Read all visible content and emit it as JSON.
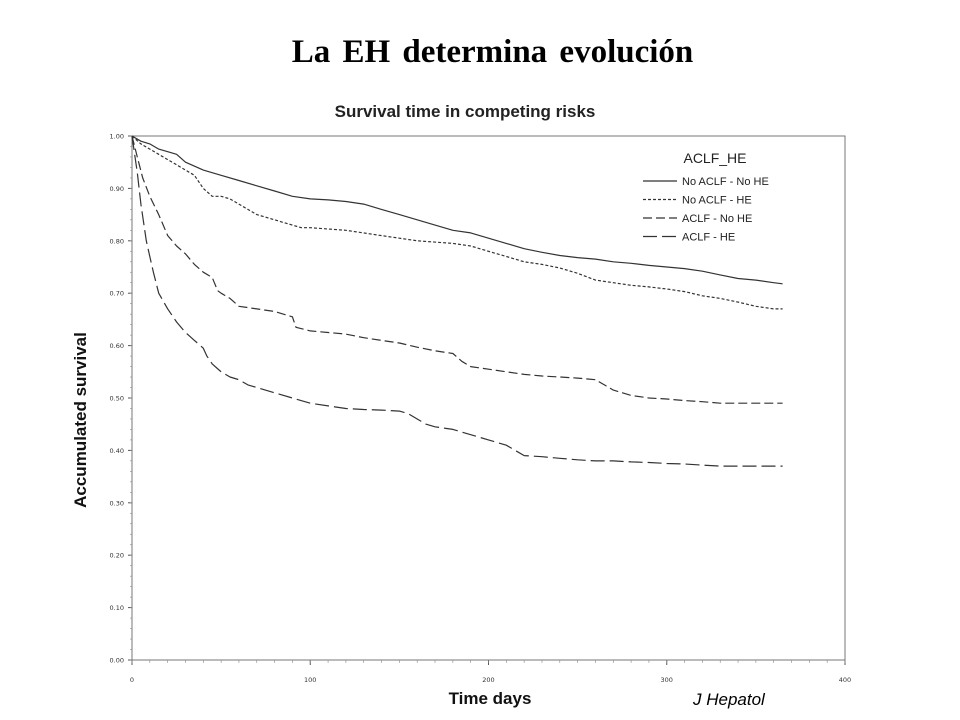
{
  "slide": {
    "title": "La EH determina  evolución",
    "source": "J Hepatol"
  },
  "chart_data": {
    "type": "line",
    "title": "Survival time in competing risks",
    "xlabel": "Time days",
    "ylabel": "Accumulated survival",
    "xlim": [
      0,
      400
    ],
    "ylim": [
      0,
      1
    ],
    "x_ticks": [
      "0",
      "100",
      "200",
      "300",
      "400"
    ],
    "y_ticks": [
      "0.00",
      "0.10",
      "0.20",
      "0.30",
      "0.40",
      "0.50",
      "0.60",
      "0.70",
      "0.80",
      "0.90",
      "1.00"
    ],
    "grid": false,
    "legend": {
      "title": "ACLF_HE",
      "position": "top-right"
    },
    "line_color": "#333333",
    "series": [
      {
        "name": "No ACLF - No HE",
        "dash": "solid",
        "points": [
          [
            0,
            1.0
          ],
          [
            5,
            0.99
          ],
          [
            10,
            0.985
          ],
          [
            15,
            0.975
          ],
          [
            20,
            0.97
          ],
          [
            25,
            0.965
          ],
          [
            30,
            0.95
          ],
          [
            40,
            0.935
          ],
          [
            50,
            0.925
          ],
          [
            60,
            0.915
          ],
          [
            70,
            0.905
          ],
          [
            80,
            0.895
          ],
          [
            90,
            0.885
          ],
          [
            100,
            0.88
          ],
          [
            110,
            0.878
          ],
          [
            120,
            0.875
          ],
          [
            130,
            0.87
          ],
          [
            140,
            0.86
          ],
          [
            150,
            0.85
          ],
          [
            160,
            0.84
          ],
          [
            170,
            0.83
          ],
          [
            180,
            0.82
          ],
          [
            190,
            0.815
          ],
          [
            200,
            0.805
          ],
          [
            210,
            0.795
          ],
          [
            220,
            0.785
          ],
          [
            230,
            0.778
          ],
          [
            240,
            0.772
          ],
          [
            250,
            0.768
          ],
          [
            260,
            0.765
          ],
          [
            270,
            0.76
          ],
          [
            280,
            0.757
          ],
          [
            290,
            0.753
          ],
          [
            300,
            0.75
          ],
          [
            310,
            0.747
          ],
          [
            320,
            0.742
          ],
          [
            330,
            0.735
          ],
          [
            340,
            0.728
          ],
          [
            350,
            0.725
          ],
          [
            360,
            0.72
          ],
          [
            365,
            0.718
          ]
        ]
      },
      {
        "name": "No ACLF - HE",
        "dash": "short-dash",
        "points": [
          [
            0,
            1.0
          ],
          [
            5,
            0.985
          ],
          [
            10,
            0.975
          ],
          [
            15,
            0.965
          ],
          [
            20,
            0.955
          ],
          [
            25,
            0.945
          ],
          [
            30,
            0.935
          ],
          [
            35,
            0.925
          ],
          [
            40,
            0.9
          ],
          [
            45,
            0.885
          ],
          [
            50,
            0.885
          ],
          [
            55,
            0.88
          ],
          [
            60,
            0.87
          ],
          [
            65,
            0.86
          ],
          [
            70,
            0.85
          ],
          [
            75,
            0.845
          ],
          [
            80,
            0.84
          ],
          [
            85,
            0.835
          ],
          [
            90,
            0.83
          ],
          [
            95,
            0.825
          ],
          [
            100,
            0.825
          ],
          [
            120,
            0.82
          ],
          [
            140,
            0.81
          ],
          [
            150,
            0.805
          ],
          [
            160,
            0.8
          ],
          [
            180,
            0.795
          ],
          [
            190,
            0.79
          ],
          [
            200,
            0.78
          ],
          [
            210,
            0.77
          ],
          [
            220,
            0.76
          ],
          [
            230,
            0.755
          ],
          [
            240,
            0.748
          ],
          [
            250,
            0.738
          ],
          [
            260,
            0.725
          ],
          [
            270,
            0.72
          ],
          [
            280,
            0.715
          ],
          [
            290,
            0.712
          ],
          [
            300,
            0.708
          ],
          [
            310,
            0.703
          ],
          [
            320,
            0.695
          ],
          [
            330,
            0.69
          ],
          [
            340,
            0.683
          ],
          [
            350,
            0.675
          ],
          [
            360,
            0.67
          ],
          [
            365,
            0.67
          ]
        ]
      },
      {
        "name": "ACLF - No HE",
        "dash": "long-dash",
        "points": [
          [
            0,
            1.0
          ],
          [
            3,
            0.96
          ],
          [
            6,
            0.92
          ],
          [
            10,
            0.885
          ],
          [
            15,
            0.85
          ],
          [
            20,
            0.81
          ],
          [
            25,
            0.79
          ],
          [
            30,
            0.775
          ],
          [
            35,
            0.755
          ],
          [
            40,
            0.74
          ],
          [
            45,
            0.73
          ],
          [
            48,
            0.705
          ],
          [
            50,
            0.7
          ],
          [
            55,
            0.69
          ],
          [
            60,
            0.675
          ],
          [
            70,
            0.67
          ],
          [
            80,
            0.665
          ],
          [
            90,
            0.655
          ],
          [
            92,
            0.635
          ],
          [
            100,
            0.628
          ],
          [
            110,
            0.625
          ],
          [
            120,
            0.622
          ],
          [
            130,
            0.615
          ],
          [
            140,
            0.61
          ],
          [
            150,
            0.605
          ],
          [
            160,
            0.597
          ],
          [
            170,
            0.59
          ],
          [
            180,
            0.585
          ],
          [
            185,
            0.57
          ],
          [
            190,
            0.56
          ],
          [
            200,
            0.555
          ],
          [
            210,
            0.55
          ],
          [
            220,
            0.545
          ],
          [
            230,
            0.542
          ],
          [
            240,
            0.54
          ],
          [
            250,
            0.538
          ],
          [
            260,
            0.535
          ],
          [
            265,
            0.525
          ],
          [
            270,
            0.515
          ],
          [
            280,
            0.505
          ],
          [
            290,
            0.5
          ],
          [
            300,
            0.498
          ],
          [
            310,
            0.495
          ],
          [
            320,
            0.493
          ],
          [
            330,
            0.49
          ],
          [
            340,
            0.49
          ],
          [
            350,
            0.49
          ],
          [
            365,
            0.49
          ]
        ]
      },
      {
        "name": "ACLF - HE",
        "dash": "long-dash-wide",
        "points": [
          [
            0,
            1.0
          ],
          [
            3,
            0.93
          ],
          [
            5,
            0.87
          ],
          [
            8,
            0.8
          ],
          [
            10,
            0.77
          ],
          [
            12,
            0.74
          ],
          [
            15,
            0.7
          ],
          [
            20,
            0.67
          ],
          [
            25,
            0.645
          ],
          [
            30,
            0.625
          ],
          [
            35,
            0.61
          ],
          [
            40,
            0.595
          ],
          [
            42,
            0.58
          ],
          [
            45,
            0.565
          ],
          [
            50,
            0.55
          ],
          [
            55,
            0.54
          ],
          [
            60,
            0.535
          ],
          [
            65,
            0.525
          ],
          [
            70,
            0.52
          ],
          [
            80,
            0.51
          ],
          [
            90,
            0.5
          ],
          [
            100,
            0.49
          ],
          [
            110,
            0.485
          ],
          [
            120,
            0.48
          ],
          [
            130,
            0.478
          ],
          [
            140,
            0.477
          ],
          [
            150,
            0.475
          ],
          [
            155,
            0.47
          ],
          [
            160,
            0.46
          ],
          [
            165,
            0.45
          ],
          [
            170,
            0.445
          ],
          [
            180,
            0.44
          ],
          [
            190,
            0.43
          ],
          [
            200,
            0.42
          ],
          [
            210,
            0.41
          ],
          [
            215,
            0.4
          ],
          [
            220,
            0.39
          ],
          [
            230,
            0.388
          ],
          [
            240,
            0.385
          ],
          [
            250,
            0.382
          ],
          [
            260,
            0.38
          ],
          [
            270,
            0.38
          ],
          [
            280,
            0.378
          ],
          [
            290,
            0.377
          ],
          [
            300,
            0.375
          ],
          [
            310,
            0.374
          ],
          [
            320,
            0.372
          ],
          [
            330,
            0.37
          ],
          [
            340,
            0.37
          ],
          [
            350,
            0.37
          ],
          [
            365,
            0.37
          ]
        ]
      }
    ]
  }
}
